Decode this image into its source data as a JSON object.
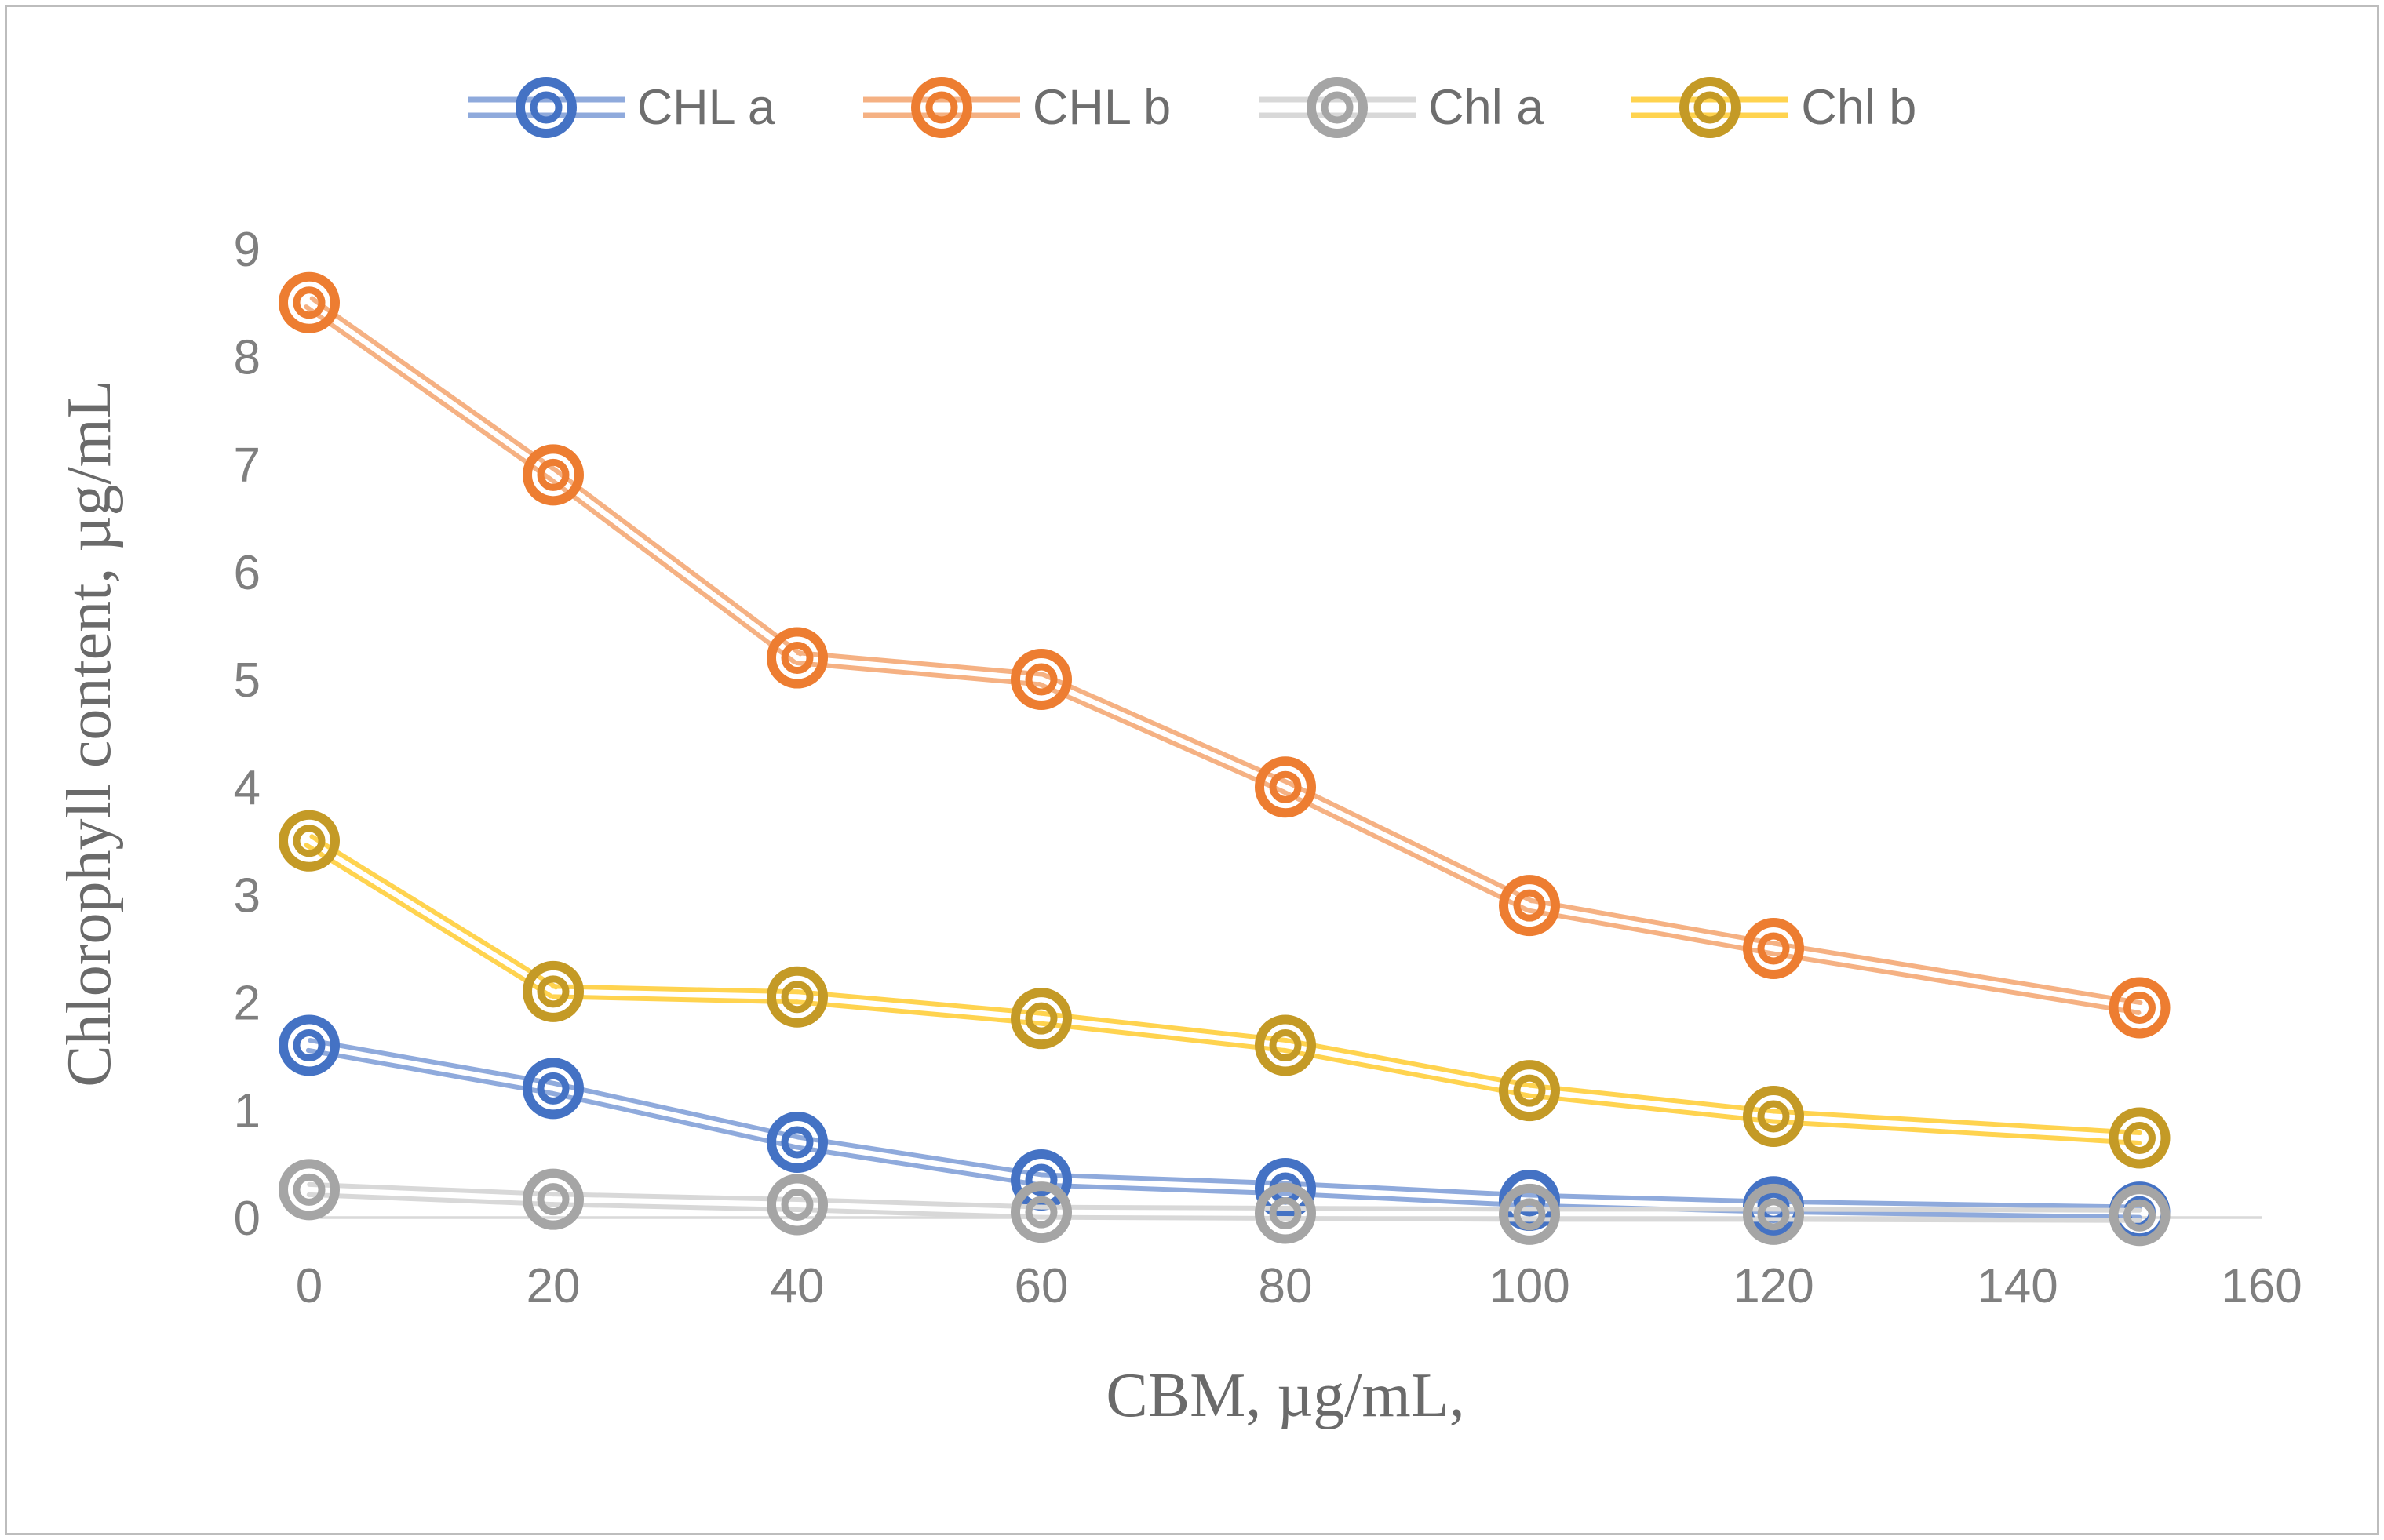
{
  "figure": {
    "background": "#ffffff",
    "border_color": "#bdbdbd"
  },
  "chart_data": {
    "type": "line",
    "title": "",
    "xlabel": "CBM, µg/mL,",
    "ylabel": "Chlorophyll content, µg/mL",
    "x": [
      0,
      20,
      40,
      60,
      80,
      100,
      120,
      150
    ],
    "xticks": [
      0,
      20,
      40,
      60,
      80,
      100,
      120,
      140,
      160
    ],
    "yticks": [
      0,
      1,
      2,
      3,
      4,
      5,
      6,
      7,
      8,
      9
    ],
    "xlim": [
      0,
      160
    ],
    "ylim": [
      0,
      9
    ],
    "grid": false,
    "legend_position": "top-center",
    "axis_line_color": "#d9d9d9",
    "tick_label_color": "#7f7f7f",
    "axis_title_color": "#6a6a6a",
    "marker_style": "double-ring-circle",
    "line_style": "double-line",
    "series": [
      {
        "name": "CHL a",
        "marker_color": "#4472c4",
        "line_color": "#8faadc",
        "values": [
          1.6,
          1.2,
          0.7,
          0.35,
          0.27,
          0.16,
          0.1,
          0.05
        ]
      },
      {
        "name": "CHL b",
        "marker_color": "#ed7d31",
        "line_color": "#f5b183",
        "values": [
          8.5,
          6.9,
          5.2,
          5.0,
          4.0,
          2.9,
          2.5,
          1.95
        ]
      },
      {
        "name": "Chl a",
        "marker_color": "#a5a5a5",
        "line_color": "#d8d8d8",
        "values": [
          0.26,
          0.17,
          0.12,
          0.05,
          0.04,
          0.03,
          0.03,
          0.02
        ]
      },
      {
        "name": "Chl b",
        "marker_color": "#c49a26",
        "line_color": "#ffd34f",
        "values": [
          3.5,
          2.1,
          2.05,
          1.85,
          1.6,
          1.18,
          0.94,
          0.74
        ]
      }
    ]
  }
}
